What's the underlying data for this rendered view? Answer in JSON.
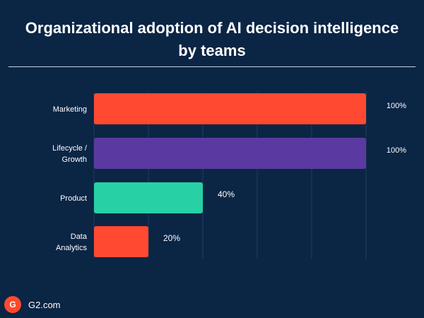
{
  "colors": {
    "background": "#0b2545",
    "grid": "#1f3a5c",
    "text": "#ffffff"
  },
  "chart_data": {
    "type": "bar",
    "orientation": "horizontal",
    "title": "Organizational adoption of AI decision intelligence by teams",
    "categories": [
      [
        "Marketing"
      ],
      [
        "Lifecycle /",
        "Growth"
      ],
      [
        "Product"
      ],
      [
        "Data",
        "Analytics"
      ]
    ],
    "values": [
      100,
      100,
      40,
      20
    ],
    "value_labels": [
      "100%",
      "100%",
      "40%",
      "20%"
    ],
    "bar_colors": [
      "#ff4930",
      "#5a3aa0",
      "#27d0a5",
      "#ff4930"
    ],
    "xlim": [
      0,
      100
    ],
    "grid": true,
    "legend": "none"
  },
  "footer": {
    "logo_text": "G",
    "site": "G2.com"
  }
}
